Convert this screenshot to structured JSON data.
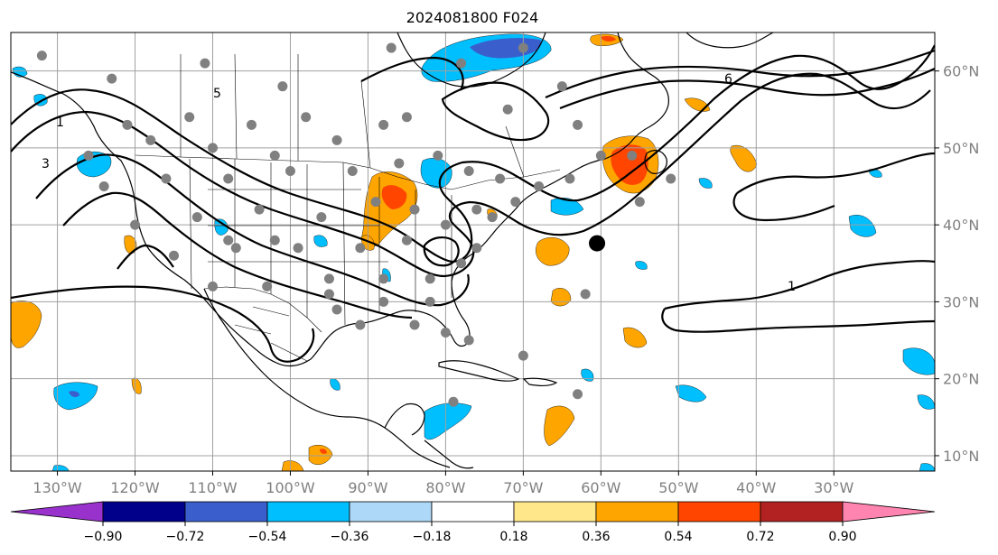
{
  "title": "2024081800 F024",
  "longitude_labels": [
    "130°W",
    "120°W",
    "110°W",
    "100°W",
    "90°W",
    "80°W",
    "70°W",
    "60°W",
    "50°W",
    "40°W",
    "30°W"
  ],
  "latitude_labels": [
    "60°N",
    "50°N",
    "40°N",
    "30°N",
    "20°N",
    "10°N"
  ],
  "colorbar": {
    "labels": [
      "−0.90",
      "−0.72",
      "−0.54",
      "−0.36",
      "−0.18",
      "0.18",
      "0.36",
      "0.54",
      "0.72",
      "0.90"
    ],
    "colors": [
      "#9932cc",
      "#00008b",
      "#3a5fcd",
      "#00bfff",
      "#add8f7",
      "#ffffff",
      "#ffe78a",
      "#ffa500",
      "#ff4500",
      "#b22222",
      "#ff85b0"
    ]
  },
  "contour_labels": [
    "1",
    "3",
    "5",
    "6",
    "1"
  ],
  "map": {
    "lon_range": [
      -136,
      -17
    ],
    "lat_range": [
      8,
      65
    ]
  },
  "markers": {
    "observation_color": "#808080",
    "highlight_color": "#000000",
    "highlight_lonlat": [
      -60.5,
      37.6
    ],
    "observations": [
      [
        -132,
        62
      ],
      [
        -123,
        59
      ],
      [
        -111,
        61
      ],
      [
        -101,
        58
      ],
      [
        -121,
        53
      ],
      [
        -113,
        54
      ],
      [
        -105,
        53
      ],
      [
        -98,
        54
      ],
      [
        -126,
        49
      ],
      [
        -118,
        51
      ],
      [
        -110,
        50
      ],
      [
        -102,
        49
      ],
      [
        -94,
        51
      ],
      [
        -88,
        53
      ],
      [
        -124,
        45
      ],
      [
        -116,
        46
      ],
      [
        -108,
        46
      ],
      [
        -100,
        47
      ],
      [
        -92,
        47
      ],
      [
        -86,
        48
      ],
      [
        -120,
        40
      ],
      [
        -112,
        41
      ],
      [
        -104,
        42
      ],
      [
        -96,
        41
      ],
      [
        -89,
        43
      ],
      [
        -84,
        42
      ],
      [
        -115,
        36
      ],
      [
        -107,
        37
      ],
      [
        -99,
        37
      ],
      [
        -91,
        37
      ],
      [
        -85,
        38
      ],
      [
        -80,
        40
      ],
      [
        -110,
        32
      ],
      [
        -103,
        32
      ],
      [
        -95,
        33
      ],
      [
        -88,
        33
      ],
      [
        -82,
        33
      ],
      [
        -78,
        35
      ],
      [
        -94,
        29
      ],
      [
        -88,
        30
      ],
      [
        -82,
        30
      ],
      [
        -80,
        26
      ],
      [
        -76,
        37
      ],
      [
        -74,
        41
      ],
      [
        -71,
        43
      ],
      [
        -68,
        45
      ],
      [
        -64,
        46
      ],
      [
        -60,
        49
      ],
      [
        -63,
        53
      ],
      [
        -56,
        49
      ],
      [
        -51,
        46
      ],
      [
        -77,
        47
      ],
      [
        -73,
        46
      ],
      [
        -81,
        49
      ],
      [
        -85,
        54
      ],
      [
        -78,
        61
      ],
      [
        -87,
        63
      ],
      [
        -70,
        63
      ],
      [
        -65,
        58
      ],
      [
        -72,
        55
      ],
      [
        -62,
        31
      ],
      [
        -77,
        25
      ],
      [
        -70,
        23
      ],
      [
        -79,
        17
      ],
      [
        -63,
        18
      ],
      [
        -55,
        43
      ],
      [
        -102,
        38
      ],
      [
        -108,
        38
      ],
      [
        -95,
        31
      ],
      [
        -91,
        27
      ],
      [
        -84,
        27
      ],
      [
        -76,
        42
      ]
    ]
  }
}
